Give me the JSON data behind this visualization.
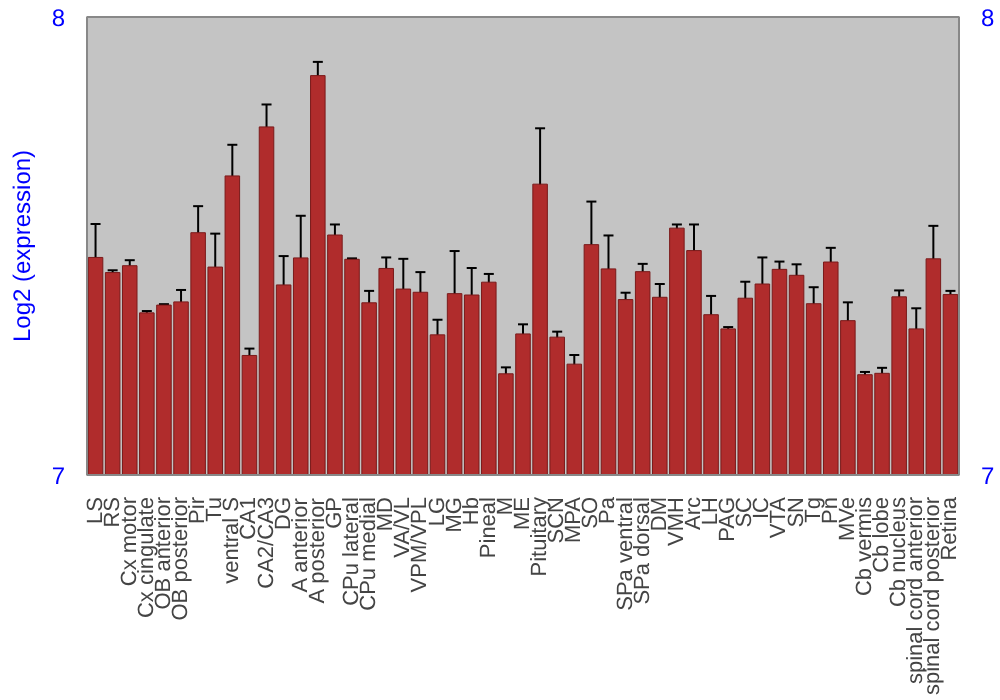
{
  "chart_data": {
    "type": "bar",
    "ylabel": "Log2 (expression)",
    "categories": [
      "LS",
      "RS",
      "Cx motor",
      "Cx cingulate",
      "OB anterior",
      "OB posterior",
      "Pir",
      "Tu",
      "ventral S",
      "CA1",
      "CA2/CA3",
      "DG",
      "A anterior",
      "A posterior",
      "GP",
      "CPu lateral",
      "CPu medial",
      "MD",
      "VA/VL",
      "VPM/VPL",
      "LG",
      "MG",
      "Hb",
      "Pineal",
      "M",
      "ME",
      "Pituitary",
      "SCN",
      "MPA",
      "SO",
      "Pa",
      "SPa ventral",
      "SPa dorsal",
      "DM",
      "VMH",
      "Arc",
      "LH",
      "PAG",
      "SC",
      "IC",
      "VTA",
      "SN",
      "Tg",
      "Pn",
      "MVe",
      "Cb vermis",
      "Cb lobe",
      "Cb nucleus",
      "spinal cord anterior",
      "spinal cord posterior",
      "Retina"
    ],
    "values": [
      7.475,
      7.442,
      7.457,
      7.354,
      7.371,
      7.378,
      7.529,
      7.454,
      7.653,
      7.261,
      7.76,
      7.415,
      7.474,
      7.872,
      7.524,
      7.471,
      7.376,
      7.451,
      7.406,
      7.399,
      7.306,
      7.396,
      7.393,
      7.421,
      7.221,
      7.308,
      7.635,
      7.301,
      7.242,
      7.503,
      7.45,
      7.383,
      7.444,
      7.388,
      7.539,
      7.49,
      7.35,
      7.319,
      7.386,
      7.417,
      7.449,
      7.436,
      7.374,
      7.465,
      7.337,
      7.219,
      7.222,
      7.389,
      7.319,
      7.472,
      7.394
    ],
    "errors": [
      0.073,
      0.005,
      0.012,
      0.004,
      0.002,
      0.026,
      0.058,
      0.073,
      0.068,
      0.015,
      0.049,
      0.063,
      0.092,
      0.03,
      0.023,
      0.002,
      0.026,
      0.024,
      0.066,
      0.044,
      0.033,
      0.093,
      0.059,
      0.018,
      0.014,
      0.021,
      0.122,
      0.012,
      0.02,
      0.094,
      0.073,
      0.015,
      0.017,
      0.029,
      0.008,
      0.057,
      0.041,
      0.004,
      0.036,
      0.058,
      0.017,
      0.024,
      0.036,
      0.031,
      0.04,
      0.006,
      0.012,
      0.014,
      0.045,
      0.072,
      0.008
    ],
    "color": "#b02c2c",
    "ylim": [
      7,
      8
    ],
    "yticks": [
      7,
      8
    ],
    "y2lim": [
      7,
      8
    ],
    "y2ticks": [
      7,
      8
    ],
    "grid": false
  }
}
